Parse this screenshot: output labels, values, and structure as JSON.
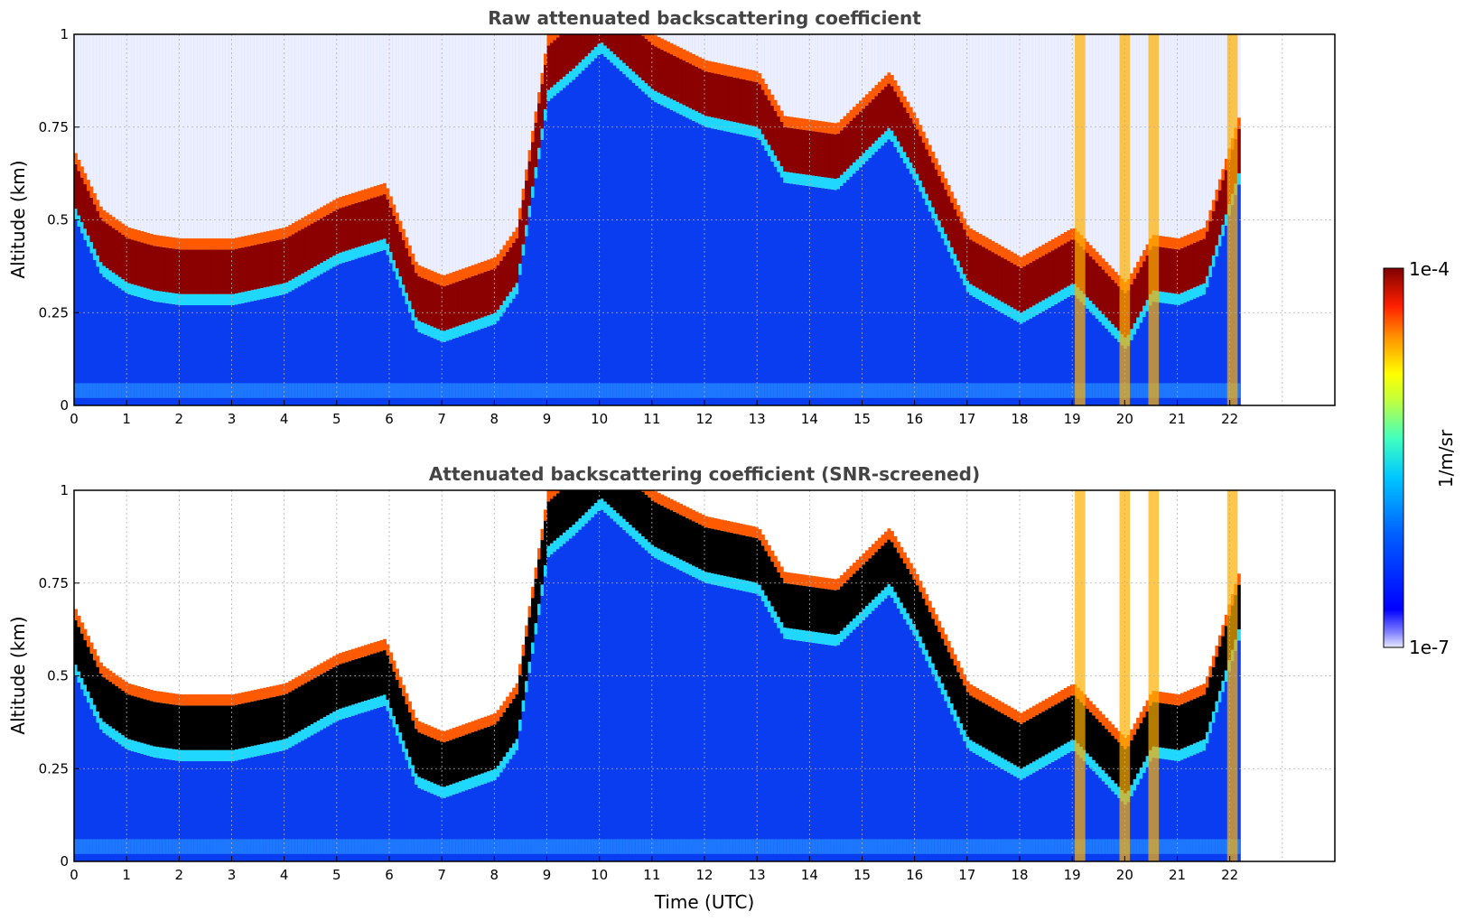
{
  "chart_data": [
    {
      "type": "heatmap",
      "title": "Raw attenuated backscattering coefficient",
      "xlabel": "",
      "ylabel": "Altitude (km)",
      "xlim": [
        0,
        24
      ],
      "ylim": [
        0,
        1
      ],
      "x_ticks": [
        "0",
        "1",
        "2",
        "3",
        "4",
        "5",
        "6",
        "7",
        "8",
        "9",
        "10",
        "11",
        "12",
        "13",
        "14",
        "15",
        "16",
        "17",
        "18",
        "19",
        "20",
        "21",
        "22"
      ],
      "y_ticks": [
        "0",
        "0.25",
        "0.5",
        "0.75",
        "1"
      ],
      "grid": true,
      "data_end_hour": 22.15,
      "screened": false
    },
    {
      "type": "heatmap",
      "title": "Attenuated backscattering coefficient (SNR-screened)",
      "xlabel": "Time (UTC)",
      "ylabel": "Altitude (km)",
      "xlim": [
        0,
        24
      ],
      "ylim": [
        0,
        1
      ],
      "x_ticks": [
        "0",
        "1",
        "2",
        "3",
        "4",
        "5",
        "6",
        "7",
        "8",
        "9",
        "10",
        "11",
        "12",
        "13",
        "14",
        "15",
        "16",
        "17",
        "18",
        "19",
        "20",
        "21",
        "22"
      ],
      "y_ticks": [
        "0",
        "0.25",
        "0.5",
        "0.75",
        "1"
      ],
      "grid": true,
      "data_end_hour": 22.15,
      "screened": true
    }
  ],
  "colorbar": {
    "label": "1/m/sr",
    "max_label": "1e-4",
    "min_label": "1e-7",
    "scale": "log",
    "colormap": "jet"
  },
  "layer_trace": {
    "hours": [
      0,
      0.5,
      1,
      1.5,
      2,
      3,
      4,
      5,
      5.9,
      6.5,
      7,
      8,
      8.4,
      9,
      9.5,
      10,
      11,
      12,
      13,
      13.5,
      14.5,
      15.5,
      16,
      16.5,
      17,
      18,
      19,
      20,
      20.5,
      21,
      21.5,
      22.15
    ],
    "cloud_base_km": [
      0.5,
      0.35,
      0.3,
      0.28,
      0.27,
      0.27,
      0.3,
      0.38,
      0.42,
      0.2,
      0.17,
      0.22,
      0.3,
      0.82,
      0.88,
      0.95,
      0.82,
      0.75,
      0.72,
      0.6,
      0.58,
      0.72,
      0.6,
      0.45,
      0.3,
      0.22,
      0.3,
      0.15,
      0.28,
      0.27,
      0.3,
      0.6
    ]
  }
}
